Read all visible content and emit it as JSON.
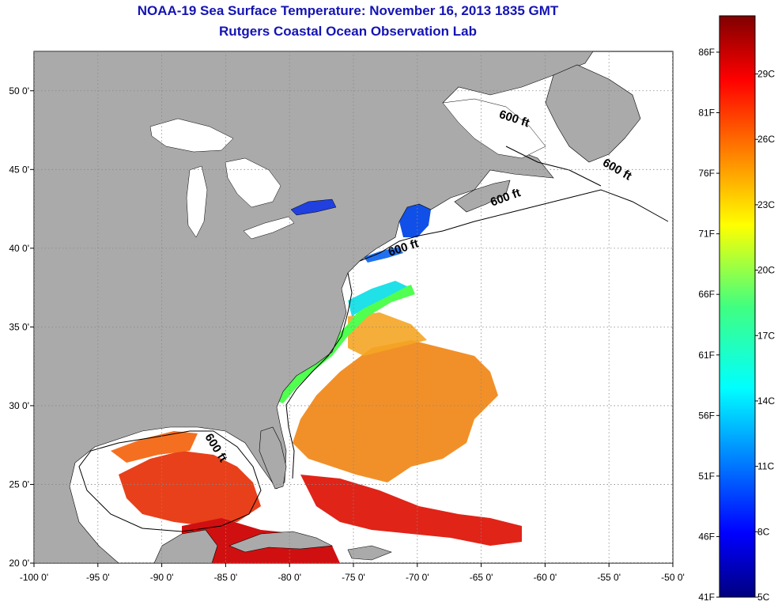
{
  "header": {
    "title": "NOAA-19 Sea Surface Temperature:  November 16, 2013 1835 GMT",
    "subtitle": "Rutgers Coastal Ocean Observation Lab"
  },
  "map": {
    "lon_range": [
      -100,
      -50
    ],
    "lat_range": [
      20,
      52.5
    ],
    "lon_ticks": [
      {
        "value": -100,
        "label": "-100 0'"
      },
      {
        "value": -95,
        "label": "-95 0'"
      },
      {
        "value": -90,
        "label": "-90 0'"
      },
      {
        "value": -85,
        "label": "-85 0'"
      },
      {
        "value": -80,
        "label": "-80 0'"
      },
      {
        "value": -75,
        "label": "-75 0'"
      },
      {
        "value": -70,
        "label": "-70 0'"
      },
      {
        "value": -65,
        "label": "-65 0'"
      },
      {
        "value": -60,
        "label": "-60 0'"
      },
      {
        "value": -55,
        "label": "-55 0'"
      },
      {
        "value": -50,
        "label": "-50 0'"
      }
    ],
    "lat_ticks": [
      {
        "value": 20,
        "label": "20 0'"
      },
      {
        "value": 25,
        "label": "25 0'"
      },
      {
        "value": 30,
        "label": "30 0'"
      },
      {
        "value": 35,
        "label": "35 0'"
      },
      {
        "value": 40,
        "label": "40 0'"
      },
      {
        "value": 45,
        "label": "45 0'"
      },
      {
        "value": 50,
        "label": "50 0'"
      }
    ],
    "isobath_labels": [
      {
        "text": "600 ft",
        "lon": -62.5,
        "lat": 48.0,
        "rotate": 18
      },
      {
        "text": "600 ft",
        "lon": -54.5,
        "lat": 44.8,
        "rotate": 30
      },
      {
        "text": "600 ft",
        "lon": -63.0,
        "lat": 43.0,
        "rotate": -20
      },
      {
        "text": "600 ft",
        "lon": -71.0,
        "lat": 39.8,
        "rotate": -18
      },
      {
        "text": "600 ft",
        "lon": -86.0,
        "lat": 27.2,
        "rotate": 58
      }
    ],
    "colors": {
      "land": "#aaaaaa",
      "ocean_nodata": "#ffffff",
      "isobath": "#000000",
      "grid": "#888888"
    }
  },
  "colorbar": {
    "min_f": 41,
    "max_f": 89,
    "fahrenheit_ticks": [
      {
        "value": 41,
        "label": "41F"
      },
      {
        "value": 46,
        "label": "46F"
      },
      {
        "value": 51,
        "label": "51F"
      },
      {
        "value": 56,
        "label": "56F"
      },
      {
        "value": 61,
        "label": "61F"
      },
      {
        "value": 66,
        "label": "66F"
      },
      {
        "value": 71,
        "label": "71F"
      },
      {
        "value": 76,
        "label": "76F"
      },
      {
        "value": 81,
        "label": "81F"
      },
      {
        "value": 86,
        "label": "86F"
      }
    ],
    "celsius_ticks": [
      {
        "value": 5,
        "label": "5C"
      },
      {
        "value": 8,
        "label": "8C"
      },
      {
        "value": 11,
        "label": "11C"
      },
      {
        "value": 14,
        "label": "14C"
      },
      {
        "value": 17,
        "label": "17C"
      },
      {
        "value": 20,
        "label": "20C"
      },
      {
        "value": 23,
        "label": "23C"
      },
      {
        "value": 26,
        "label": "26C"
      },
      {
        "value": 29,
        "label": "29C"
      }
    ]
  }
}
